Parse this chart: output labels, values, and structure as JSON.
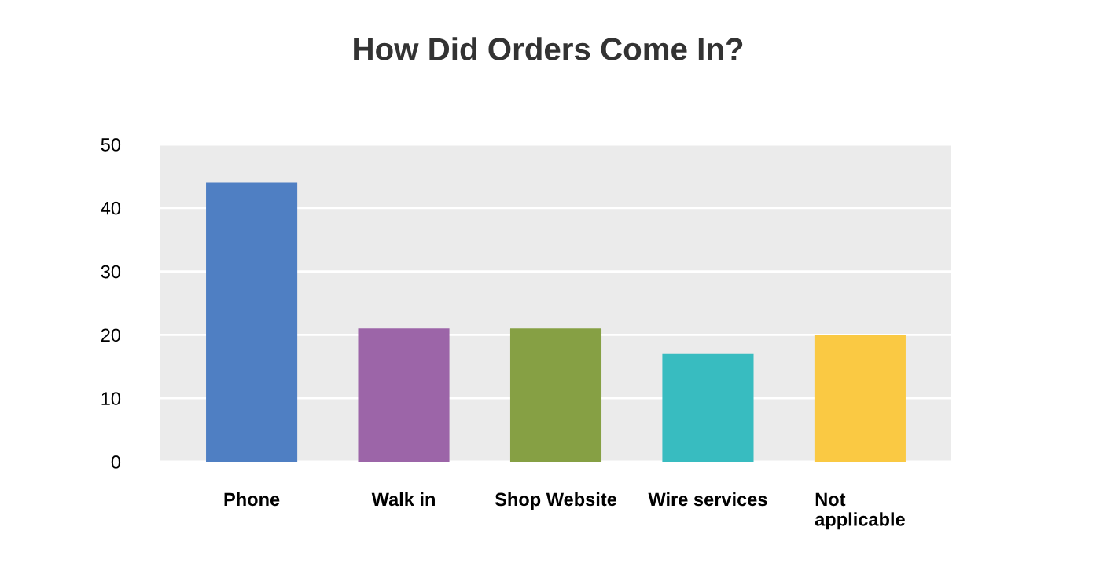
{
  "chart_data": {
    "type": "bar",
    "title": "How Did Orders Come In?",
    "categories": [
      "Phone",
      "Walk in",
      "Shop Website",
      "Wire services",
      "Not\napplicable"
    ],
    "values": [
      44,
      21,
      21,
      17,
      20
    ],
    "colors": [
      "#4f7fc3",
      "#9c65a8",
      "#86a044",
      "#38bcc0",
      "#fac943"
    ],
    "ylim": [
      0,
      50
    ],
    "yticks": [
      0,
      10,
      20,
      30,
      40,
      50
    ],
    "grid": "y"
  }
}
